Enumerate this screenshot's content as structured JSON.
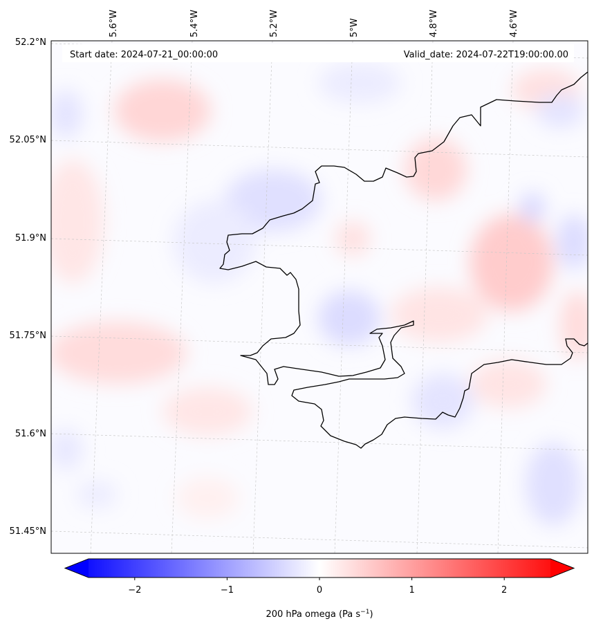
{
  "map": {
    "start_date": "Start date: 2024-07-21_00:00:00",
    "valid_date": "Valid_date: 2024-07-22T19:00:00.00",
    "lon_labels": [
      "5.6°W",
      "5.4°W",
      "5.2°W",
      "5°W",
      "4.8°W",
      "4.6°W"
    ],
    "lat_labels": [
      "52.2°N",
      "52.05°N",
      "51.9°N",
      "51.75°N",
      "51.6°N",
      "51.45°N"
    ],
    "field_variable": "200 hPa omega",
    "colormap": "bwr",
    "coastline_color": "#000000",
    "gridline_style": "dashed light gray",
    "shading_features": [
      {
        "kind": "positive",
        "level": 0.5,
        "area": "around 5.35°W 52.07°N"
      },
      {
        "kind": "positive",
        "level": 0.6,
        "area": "around 4.55°W 51.85°N"
      },
      {
        "kind": "positive",
        "level": 0.5,
        "area": "around 4.75°W 52.0°N"
      },
      {
        "kind": "positive",
        "level": 0.4,
        "area": "around 5.45°W 51.72°N"
      },
      {
        "kind": "negative",
        "level": -0.4,
        "area": "around 4.95°W 51.77°N"
      },
      {
        "kind": "negative",
        "level": -0.4,
        "area": "around 5.15°W 51.95°N"
      },
      {
        "kind": "negative",
        "level": -0.4,
        "area": "around 4.45°W 51.55°N"
      }
    ]
  },
  "colorbar": {
    "label_main": "200 hPa omega (Pa s",
    "label_exp": "−1",
    "label_end": ")",
    "ticks": [
      "−2",
      "−1",
      "0",
      "1",
      "2"
    ],
    "tick_values": [
      -2,
      -1,
      0,
      1,
      2
    ],
    "range": [
      -2.5,
      2.5
    ],
    "extend": "both",
    "min_color": "#0000ff",
    "mid_color": "#ffffff",
    "max_color": "#ff0000"
  }
}
